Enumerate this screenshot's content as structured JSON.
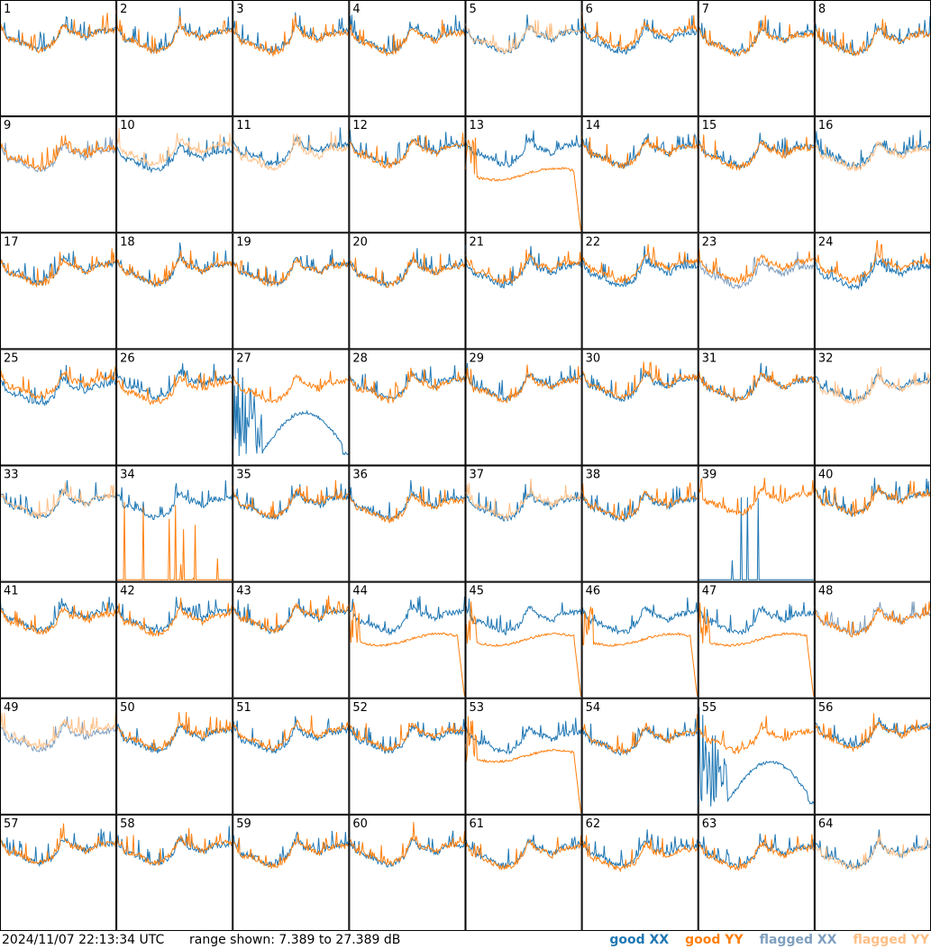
{
  "chart_data": {
    "type": "line",
    "panels": [
      "1",
      "2",
      "3",
      "4",
      "5",
      "6",
      "7",
      "8",
      "9",
      "10",
      "11",
      "12",
      "13",
      "14",
      "15",
      "16",
      "17",
      "18",
      "19",
      "20",
      "21",
      "22",
      "23",
      "24",
      "25",
      "26",
      "27",
      "28",
      "29",
      "30",
      "31",
      "32",
      "33",
      "34",
      "35",
      "36",
      "37",
      "38",
      "39",
      "40",
      "41",
      "42",
      "43",
      "44",
      "45",
      "46",
      "47",
      "48",
      "49",
      "50",
      "51",
      "52",
      "53",
      "54",
      "55",
      "56",
      "57",
      "58",
      "59",
      "60",
      "61",
      "62",
      "63",
      "64"
    ],
    "yrange_db": [
      7.389,
      27.389
    ],
    "flagged_xx": [
      9,
      23,
      48,
      49
    ],
    "flagged_yy": [
      5,
      10,
      11,
      16,
      32,
      33,
      37,
      49,
      64
    ],
    "low_xx": [
      39
    ],
    "low_yy": [
      34
    ],
    "spiky_xx": [
      27,
      55
    ],
    "collapse_yy": [
      13,
      44,
      45,
      46,
      47,
      53
    ],
    "series": [
      {
        "name": "good XX",
        "color": "#1f77b4"
      },
      {
        "name": "good YY",
        "color": "#ff7f0e"
      },
      {
        "name": "flagged XX",
        "color": "#7f9fbf"
      },
      {
        "name": "flagged YY",
        "color": "#ffbf87"
      }
    ]
  },
  "footer": {
    "timestamp": "2024/11/07 22:13:34 UTC",
    "range": "range shown: 7.389 to 27.389 dB"
  },
  "legend": {
    "good_xx": "good XX",
    "good_yy": "good YY",
    "flagged_xx": "flagged XX",
    "flagged_yy": "flagged YY"
  },
  "colors": {
    "good_xx": "#1f77b4",
    "good_yy": "#ff7f0e",
    "flagged_xx": "#7f9fbf",
    "flagged_yy": "#ffbf87"
  }
}
